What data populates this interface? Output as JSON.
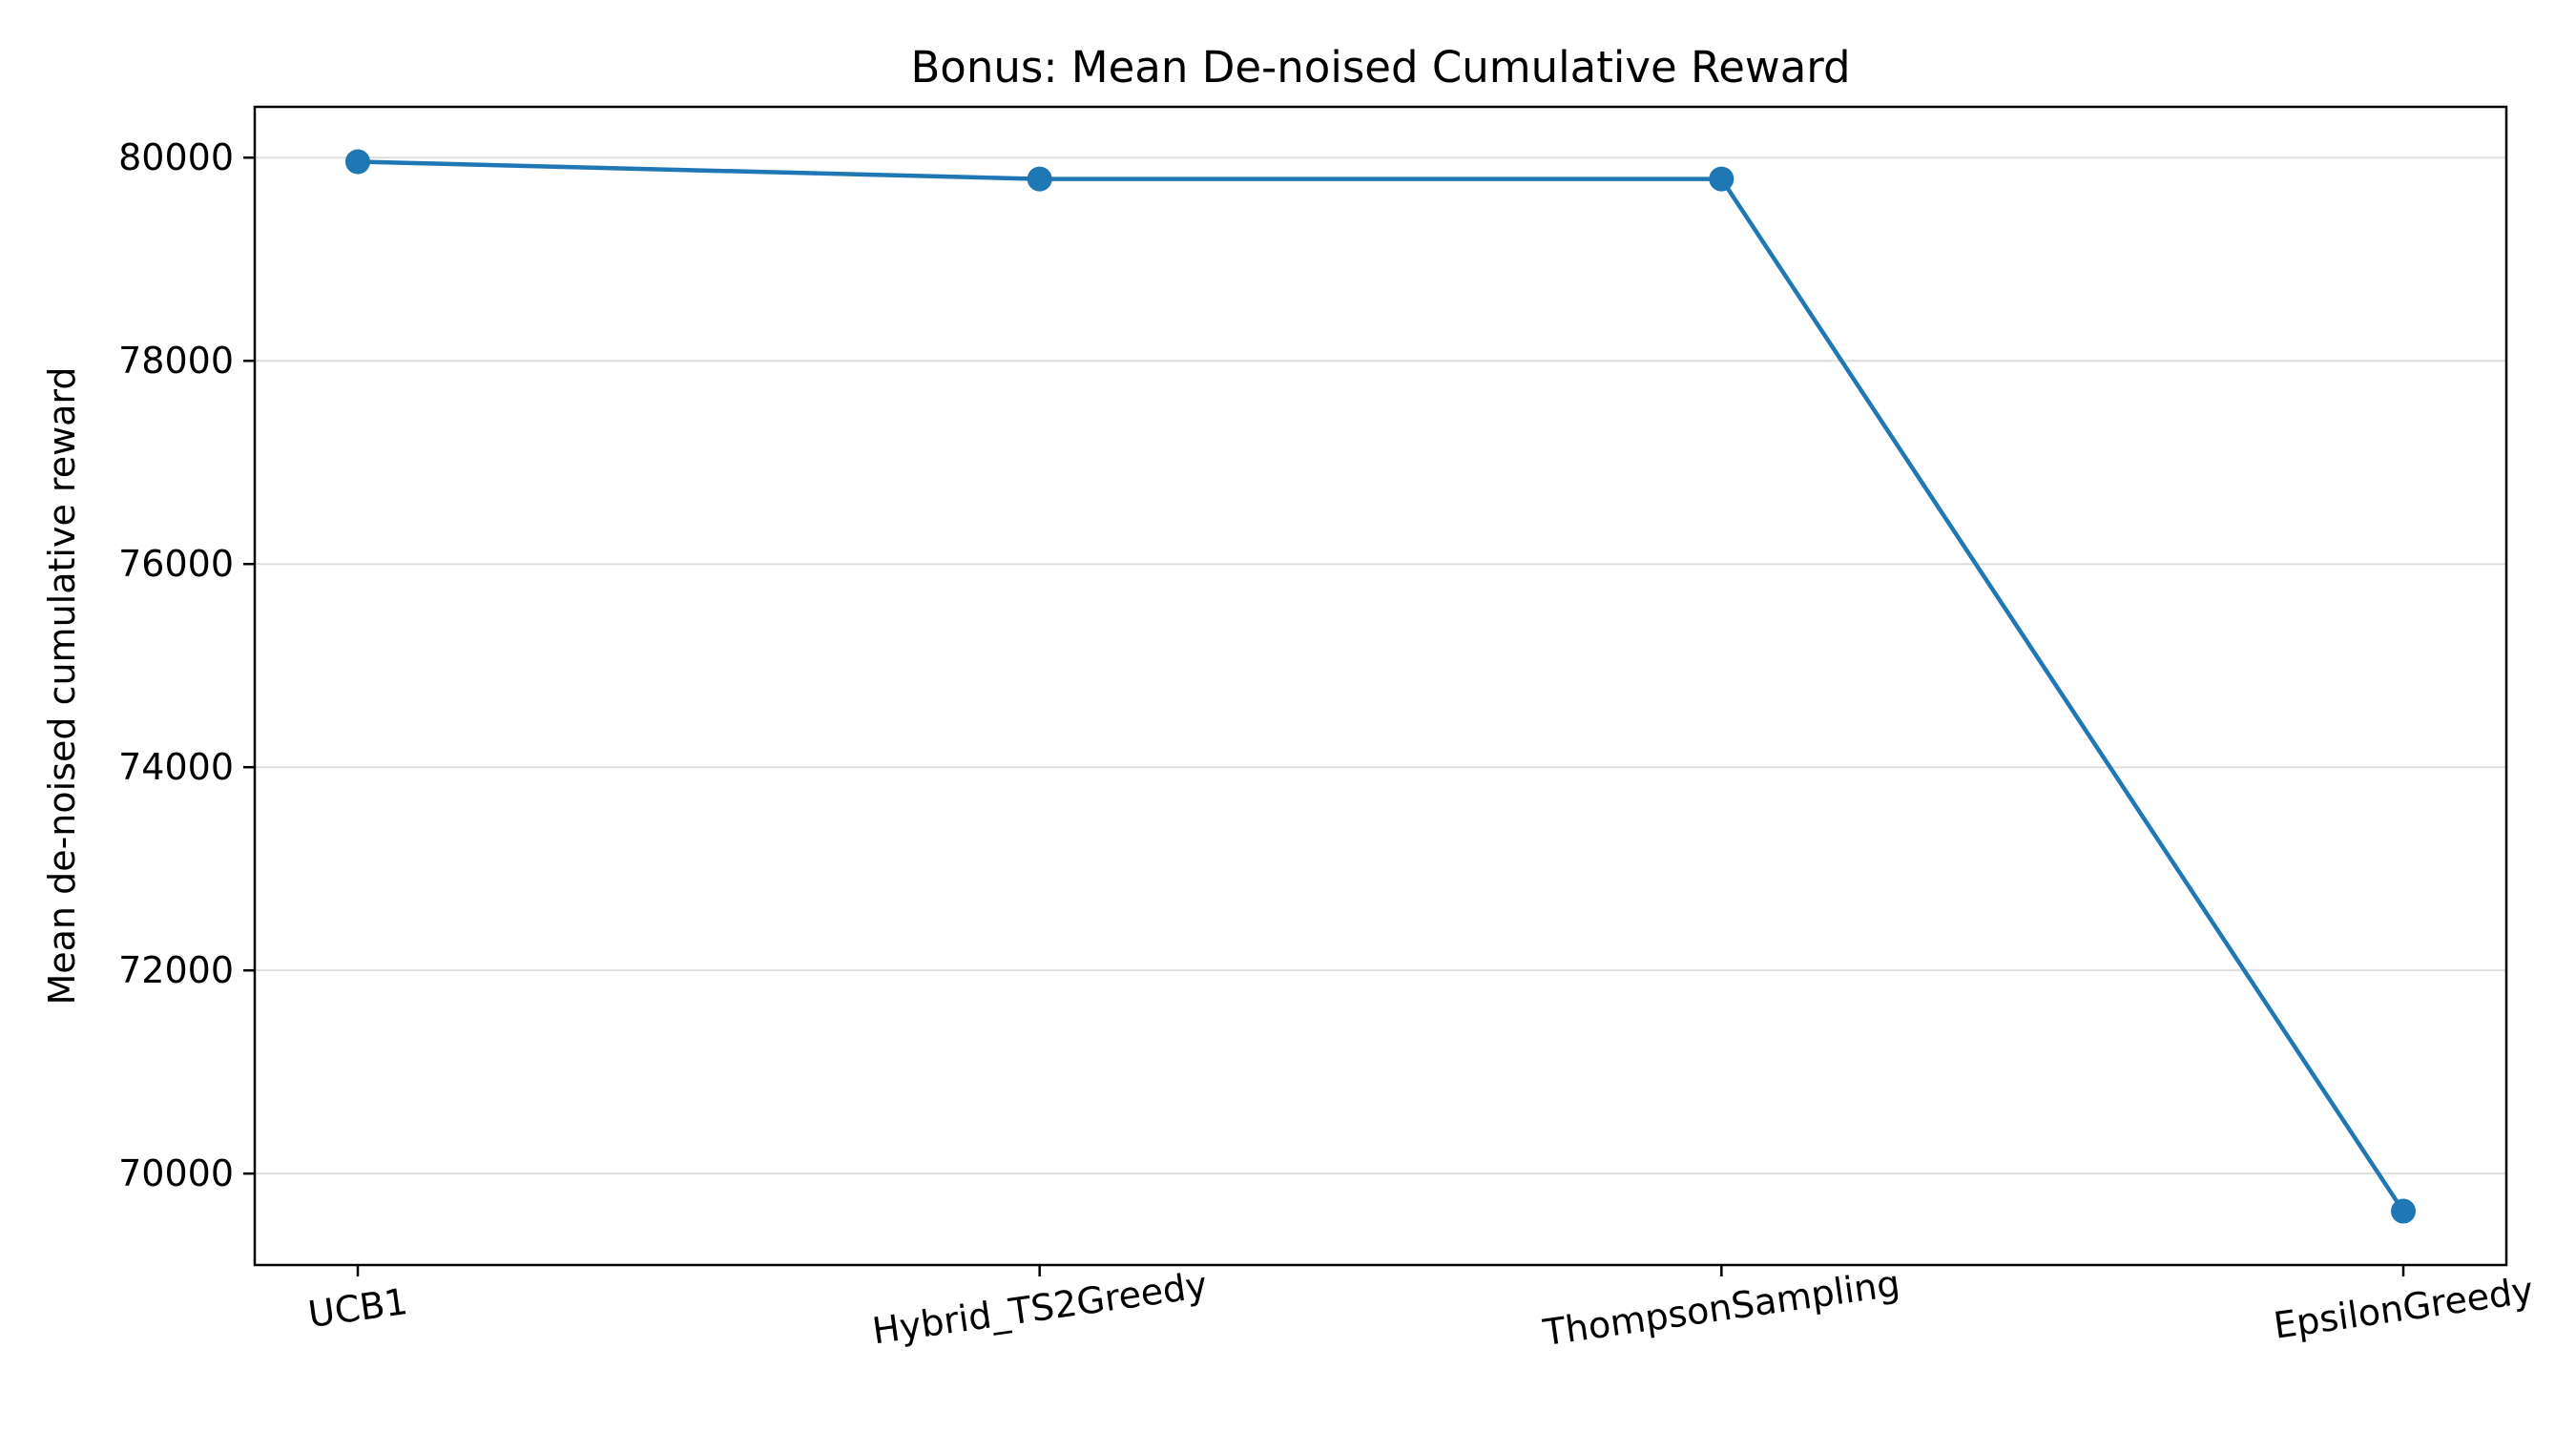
{
  "chart_data": {
    "type": "line",
    "title": "Bonus: Mean De-noised Cumulative Reward",
    "xlabel": "",
    "ylabel": "Mean de-noised cumulative reward",
    "categories": [
      "UCB1",
      "Hybrid_TS2Greedy",
      "ThompsonSampling",
      "EpsilonGreedy"
    ],
    "series": [
      {
        "values": [
          79960,
          79790,
          79790,
          69630
        ],
        "color": "#1f77b4",
        "marker": "circle"
      }
    ],
    "ylim": [
      69100,
      80500
    ],
    "yticks": [
      70000,
      72000,
      74000,
      76000,
      78000,
      80000
    ],
    "ytick_labels": [
      "70000",
      "72000",
      "74000",
      "76000",
      "78000",
      "80000"
    ],
    "grid": "y-only",
    "legend": "none"
  }
}
